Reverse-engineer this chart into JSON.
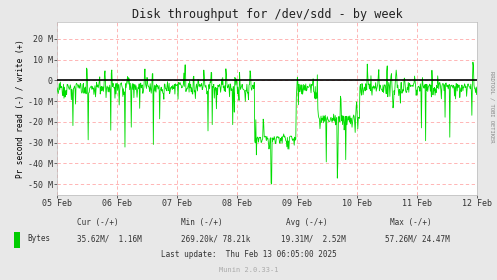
{
  "title": "Disk throughput for /dev/sdd - by week",
  "ylabel": "Pr second read (-) / write (+)",
  "rrd_label": "RRDTOOL / TOBI OETIKER",
  "bg_color": "#e8e8e8",
  "plot_bg_color": "#ffffff",
  "grid_color": "#ffaaaa",
  "line_color": "#00dd00",
  "zero_line_color": "#000000",
  "ylim": [
    -55000000,
    28000000
  ],
  "yticks": [
    -50000000,
    -40000000,
    -30000000,
    -20000000,
    -10000000,
    0,
    10000000,
    20000000
  ],
  "ytick_labels": [
    "-50 M",
    "-40 M",
    "-30 M",
    "-20 M",
    "-10 M",
    "0",
    "10 M",
    "20 M"
  ],
  "xtick_labels": [
    "05 Feb",
    "06 Feb",
    "07 Feb",
    "08 Feb",
    "09 Feb",
    "10 Feb",
    "11 Feb",
    "12 Feb"
  ],
  "legend_color": "#00cc00",
  "legend_label": "Bytes",
  "cur_label": "Cur (-/+)",
  "min_label": "Min (-/+)",
  "avg_label": "Avg (-/+)",
  "max_label": "Max (-/+)",
  "cur_val": "35.62M/  1.16M",
  "min_val": "269.20k/ 78.21k",
  "avg_val": "19.31M/  2.52M",
  "max_val": "57.26M/ 24.47M",
  "last_update": "Last update:  Thu Feb 13 06:05:00 2025",
  "munin_ver": "Munin 2.0.33-1",
  "seed": 42,
  "n_points": 800
}
